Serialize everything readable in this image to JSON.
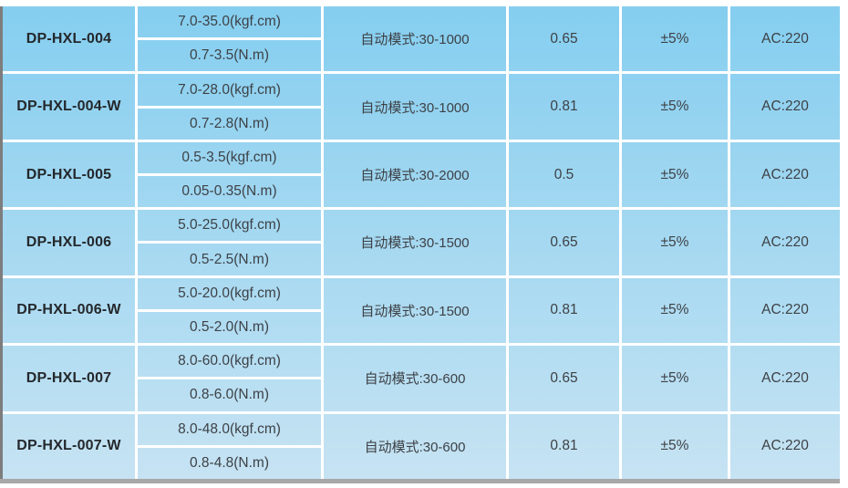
{
  "table": {
    "column_semantics": {
      "model": "product model",
      "torque_kgf": "torque range (kgf.cm)",
      "torque_nm": "torque range (N.m)",
      "mode": "auto mode speed range",
      "coefficient": "coefficient value",
      "accuracy": "torque accuracy",
      "power": "power supply voltage"
    },
    "rows": [
      {
        "model": "DP-HXL-004",
        "torque_kgf": "7.0-35.0(kgf.cm)",
        "torque_nm": "0.7-3.5(N.m)",
        "mode": "自动模式:30-1000",
        "coefficient": "0.65",
        "accuracy": "±5%",
        "power": "AC:220"
      },
      {
        "model": "DP-HXL-004-W",
        "torque_kgf": "7.0-28.0(kgf.cm)",
        "torque_nm": "0.7-2.8(N.m)",
        "mode": "自动模式:30-1000",
        "coefficient": "0.81",
        "accuracy": "±5%",
        "power": "AC:220"
      },
      {
        "model": "DP-HXL-005",
        "torque_kgf": "0.5-3.5(kgf.cm)",
        "torque_nm": "0.05-0.35(N.m)",
        "mode": "自动模式:30-2000",
        "coefficient": "0.5",
        "accuracy": "±5%",
        "power": "AC:220"
      },
      {
        "model": "DP-HXL-006",
        "torque_kgf": "5.0-25.0(kgf.cm)",
        "torque_nm": "0.5-2.5(N.m)",
        "mode": "自动模式:30-1500",
        "coefficient": "0.65",
        "accuracy": "±5%",
        "power": "AC:220"
      },
      {
        "model": "DP-HXL-006-W",
        "torque_kgf": "5.0-20.0(kgf.cm)",
        "torque_nm": "0.5-2.0(N.m)",
        "mode": "自动模式:30-1500",
        "coefficient": "0.81",
        "accuracy": "±5%",
        "power": "AC:220"
      },
      {
        "model": "DP-HXL-007",
        "torque_kgf": "8.0-60.0(kgf.cm)",
        "torque_nm": "0.8-6.0(N.m)",
        "mode": "自动模式:30-600",
        "coefficient": "0.65",
        "accuracy": "±5%",
        "power": "AC:220"
      },
      {
        "model": "DP-HXL-007-W",
        "torque_kgf": "8.0-48.0(kgf.cm)",
        "torque_nm": "0.8-4.8(N.m)",
        "mode": "自动模式:30-600",
        "coefficient": "0.81",
        "accuracy": "±5%",
        "power": "AC:220"
      }
    ]
  },
  "colors": {
    "gradient_top": "#85ceef",
    "gradient_bottom": "#c6e3f3",
    "grid_line": "#ffffff",
    "text": "#3d4146",
    "model_text": "#24282c",
    "shadow_left": "#7d7d7d",
    "shadow_bottom": "#a8a8a8"
  }
}
